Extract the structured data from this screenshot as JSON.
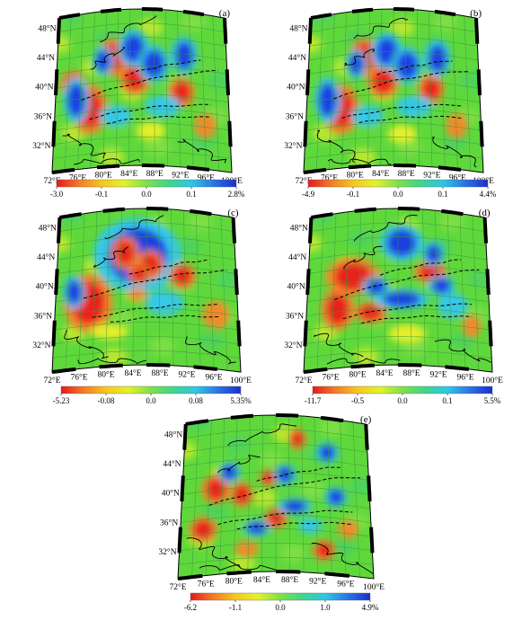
{
  "panels": [
    {
      "id": "a",
      "label": "(a)",
      "lat_labels": [
        "48°N",
        "44°N",
        "40°N",
        "36°N",
        "32°N"
      ],
      "lon_labels": [
        "72°E",
        "76°E",
        "80°E",
        "84°E",
        "88°E",
        "92°E",
        "96°E",
        "100°E"
      ],
      "scale_ticks": [
        "-3.0",
        "-0.1",
        "0.0",
        "0.1",
        "2.8%"
      ],
      "blobs": [
        {
          "c": "red",
          "u": 0.33,
          "v": 0.3,
          "rx": 0.06,
          "ry": 0.09
        },
        {
          "c": "red",
          "u": 0.2,
          "v": 0.62,
          "rx": 0.07,
          "ry": 0.12
        },
        {
          "c": "red",
          "u": 0.46,
          "v": 0.44,
          "rx": 0.06,
          "ry": 0.08
        },
        {
          "c": "red",
          "u": 0.73,
          "v": 0.52,
          "rx": 0.05,
          "ry": 0.07
        },
        {
          "c": "orange",
          "u": 0.86,
          "v": 0.72,
          "rx": 0.06,
          "ry": 0.08
        },
        {
          "c": "red",
          "u": 0.1,
          "v": 0.45,
          "rx": 0.05,
          "ry": 0.07
        },
        {
          "c": "blue",
          "u": 0.12,
          "v": 0.55,
          "rx": 0.05,
          "ry": 0.11
        },
        {
          "c": "blue",
          "u": 0.45,
          "v": 0.25,
          "rx": 0.06,
          "ry": 0.09
        },
        {
          "c": "blue",
          "u": 0.57,
          "v": 0.35,
          "rx": 0.06,
          "ry": 0.09
        },
        {
          "c": "blue",
          "u": 0.27,
          "v": 0.32,
          "rx": 0.04,
          "ry": 0.07
        },
        {
          "c": "blue",
          "u": 0.75,
          "v": 0.28,
          "rx": 0.05,
          "ry": 0.09
        },
        {
          "c": "cyan",
          "u": 0.35,
          "v": 0.68,
          "rx": 0.09,
          "ry": 0.07
        },
        {
          "c": "cyan",
          "u": 0.62,
          "v": 0.62,
          "rx": 0.1,
          "ry": 0.07
        },
        {
          "c": "yellow",
          "u": 0.55,
          "v": 0.78,
          "rx": 0.08,
          "ry": 0.06
        }
      ]
    },
    {
      "id": "b",
      "label": "(b)",
      "lat_labels": [
        "48°N",
        "44°N",
        "40°N",
        "36°N",
        "32°N"
      ],
      "lon_labels": [
        "72°E",
        "76°E",
        "80°E",
        "84°E",
        "88°E",
        "92°E",
        "96°E",
        "100°E"
      ],
      "scale_ticks": [
        "-4.9",
        "-0.1",
        "0.0",
        "0.1",
        "4.4%"
      ],
      "blobs": [
        {
          "c": "red",
          "u": 0.33,
          "v": 0.3,
          "rx": 0.06,
          "ry": 0.09
        },
        {
          "c": "red",
          "u": 0.2,
          "v": 0.62,
          "rx": 0.07,
          "ry": 0.12
        },
        {
          "c": "red",
          "u": 0.44,
          "v": 0.46,
          "rx": 0.06,
          "ry": 0.08
        },
        {
          "c": "red",
          "u": 0.72,
          "v": 0.5,
          "rx": 0.05,
          "ry": 0.07
        },
        {
          "c": "orange",
          "u": 0.86,
          "v": 0.72,
          "rx": 0.06,
          "ry": 0.08
        },
        {
          "c": "blue",
          "u": 0.12,
          "v": 0.55,
          "rx": 0.05,
          "ry": 0.11
        },
        {
          "c": "blue",
          "u": 0.46,
          "v": 0.27,
          "rx": 0.06,
          "ry": 0.09
        },
        {
          "c": "blue",
          "u": 0.58,
          "v": 0.36,
          "rx": 0.06,
          "ry": 0.09
        },
        {
          "c": "blue",
          "u": 0.28,
          "v": 0.34,
          "rx": 0.04,
          "ry": 0.07
        },
        {
          "c": "blue",
          "u": 0.76,
          "v": 0.3,
          "rx": 0.05,
          "ry": 0.09
        },
        {
          "c": "cyan",
          "u": 0.35,
          "v": 0.68,
          "rx": 0.09,
          "ry": 0.07
        },
        {
          "c": "cyan",
          "u": 0.62,
          "v": 0.62,
          "rx": 0.1,
          "ry": 0.07
        },
        {
          "c": "yellow",
          "u": 0.55,
          "v": 0.8,
          "rx": 0.08,
          "ry": 0.06
        }
      ]
    },
    {
      "id": "c",
      "label": "(c)",
      "lat_labels": [
        "48°N",
        "44°N",
        "40°N",
        "36°N",
        "32°N"
      ],
      "lon_labels": [
        "72°E",
        "76°E",
        "80°E",
        "84°E",
        "88°E",
        "92°E",
        "96°E",
        "100°E"
      ],
      "scale_ticks": [
        "-5.23",
        "-0.08",
        "0.0",
        "0.08",
        "5.35%"
      ],
      "blobs": [
        {
          "c": "blue",
          "u": 0.45,
          "v": 0.3,
          "rx": 0.16,
          "ry": 0.18
        },
        {
          "c": "red",
          "u": 0.38,
          "v": 0.28,
          "rx": 0.05,
          "ry": 0.08
        },
        {
          "c": "red",
          "u": 0.52,
          "v": 0.36,
          "rx": 0.05,
          "ry": 0.07
        },
        {
          "c": "red",
          "u": 0.46,
          "v": 0.42,
          "rx": 0.04,
          "ry": 0.05
        },
        {
          "c": "red",
          "u": 0.18,
          "v": 0.58,
          "rx": 0.09,
          "ry": 0.14
        },
        {
          "c": "red",
          "u": 0.7,
          "v": 0.42,
          "rx": 0.05,
          "ry": 0.06
        },
        {
          "c": "orange",
          "u": 0.88,
          "v": 0.65,
          "rx": 0.07,
          "ry": 0.09
        },
        {
          "c": "blue",
          "u": 0.1,
          "v": 0.5,
          "rx": 0.04,
          "ry": 0.08
        },
        {
          "c": "cyan",
          "u": 0.6,
          "v": 0.6,
          "rx": 0.1,
          "ry": 0.08
        },
        {
          "c": "orange",
          "u": 0.45,
          "v": 0.55,
          "rx": 0.05,
          "ry": 0.04
        },
        {
          "c": "yellow",
          "u": 0.3,
          "v": 0.78,
          "rx": 0.1,
          "ry": 0.05
        }
      ]
    },
    {
      "id": "d",
      "label": "(d)",
      "lat_labels": [
        "48°N",
        "44°N",
        "40°N",
        "36°N",
        "32°N"
      ],
      "lon_labels": [
        "72°E",
        "76°E",
        "80°E",
        "84°E",
        "88°E",
        "92°E",
        "96°E",
        "100°E"
      ],
      "scale_ticks": [
        "-11.7",
        "-0.5",
        "0.0",
        "0.1",
        "5.5%"
      ],
      "blobs": [
        {
          "c": "red",
          "u": 0.25,
          "v": 0.42,
          "rx": 0.1,
          "ry": 0.09
        },
        {
          "c": "red",
          "u": 0.17,
          "v": 0.62,
          "rx": 0.06,
          "ry": 0.1
        },
        {
          "c": "red",
          "u": 0.35,
          "v": 0.66,
          "rx": 0.06,
          "ry": 0.05
        },
        {
          "c": "red",
          "u": 0.68,
          "v": 0.4,
          "rx": 0.06,
          "ry": 0.05
        },
        {
          "c": "blue",
          "u": 0.52,
          "v": 0.22,
          "rx": 0.08,
          "ry": 0.09
        },
        {
          "c": "blue",
          "u": 0.7,
          "v": 0.28,
          "rx": 0.04,
          "ry": 0.06
        },
        {
          "c": "blue",
          "u": 0.38,
          "v": 0.5,
          "rx": 0.05,
          "ry": 0.05
        },
        {
          "c": "blue",
          "u": 0.74,
          "v": 0.48,
          "rx": 0.05,
          "ry": 0.05
        },
        {
          "c": "blue",
          "u": 0.52,
          "v": 0.58,
          "rx": 0.1,
          "ry": 0.05
        },
        {
          "c": "cyan",
          "u": 0.8,
          "v": 0.6,
          "rx": 0.08,
          "ry": 0.08
        },
        {
          "c": "yellow",
          "u": 0.55,
          "v": 0.8,
          "rx": 0.1,
          "ry": 0.06
        },
        {
          "c": "orange",
          "u": 0.9,
          "v": 0.72,
          "rx": 0.05,
          "ry": 0.07
        }
      ]
    },
    {
      "id": "e",
      "label": "(e)",
      "lat_labels": [
        "48°N",
        "44°N",
        "40°N",
        "36°N",
        "32°N"
      ],
      "lon_labels": [
        "72°E",
        "76°E",
        "80°E",
        "84°E",
        "88°E",
        "92°E",
        "96°E",
        "100°E"
      ],
      "scale_ticks": [
        "-6.2",
        "-1.1",
        "0.0",
        "1.0",
        "4.9%"
      ],
      "blobs": [
        {
          "c": "red",
          "u": 0.18,
          "v": 0.45,
          "rx": 0.05,
          "ry": 0.07
        },
        {
          "c": "red",
          "u": 0.32,
          "v": 0.5,
          "rx": 0.04,
          "ry": 0.06
        },
        {
          "c": "red",
          "u": 0.12,
          "v": 0.7,
          "rx": 0.05,
          "ry": 0.06
        },
        {
          "c": "red",
          "u": 0.5,
          "v": 0.66,
          "rx": 0.04,
          "ry": 0.05
        },
        {
          "c": "red",
          "u": 0.75,
          "v": 0.85,
          "rx": 0.04,
          "ry": 0.05
        },
        {
          "c": "red",
          "u": 0.62,
          "v": 0.15,
          "rx": 0.03,
          "ry": 0.05
        },
        {
          "c": "red",
          "u": 0.46,
          "v": 0.4,
          "rx": 0.03,
          "ry": 0.04
        },
        {
          "c": "blue",
          "u": 0.25,
          "v": 0.35,
          "rx": 0.04,
          "ry": 0.05
        },
        {
          "c": "blue",
          "u": 0.55,
          "v": 0.38,
          "rx": 0.04,
          "ry": 0.05
        },
        {
          "c": "blue",
          "u": 0.6,
          "v": 0.58,
          "rx": 0.06,
          "ry": 0.04
        },
        {
          "c": "blue",
          "u": 0.4,
          "v": 0.72,
          "rx": 0.05,
          "ry": 0.04
        },
        {
          "c": "blue",
          "u": 0.78,
          "v": 0.22,
          "rx": 0.04,
          "ry": 0.05
        },
        {
          "c": "blue",
          "u": 0.82,
          "v": 0.5,
          "rx": 0.04,
          "ry": 0.05
        },
        {
          "c": "orange",
          "u": 0.35,
          "v": 0.85,
          "rx": 0.06,
          "ry": 0.05
        },
        {
          "c": "orange",
          "u": 0.88,
          "v": 0.7,
          "rx": 0.05,
          "ry": 0.06
        },
        {
          "c": "cyan",
          "u": 0.68,
          "v": 0.7,
          "rx": 0.06,
          "ry": 0.05
        }
      ]
    }
  ],
  "colors": {
    "field_base": "#5fd83c",
    "red": "#e8231e",
    "orange": "#f4882a",
    "yellow": "#e6ee2a",
    "cyan": "#35c8e8",
    "blue": "#1f3fe0",
    "frame": "#000000",
    "grid": "#3a9a3a"
  },
  "colorbar_stops": [
    "#e31a1c",
    "#f47a26",
    "#f7c61e",
    "#e2f229",
    "#7ee04a",
    "#3fd58a",
    "#2ec7e6",
    "#2b74e3",
    "#1b2fcc"
  ]
}
